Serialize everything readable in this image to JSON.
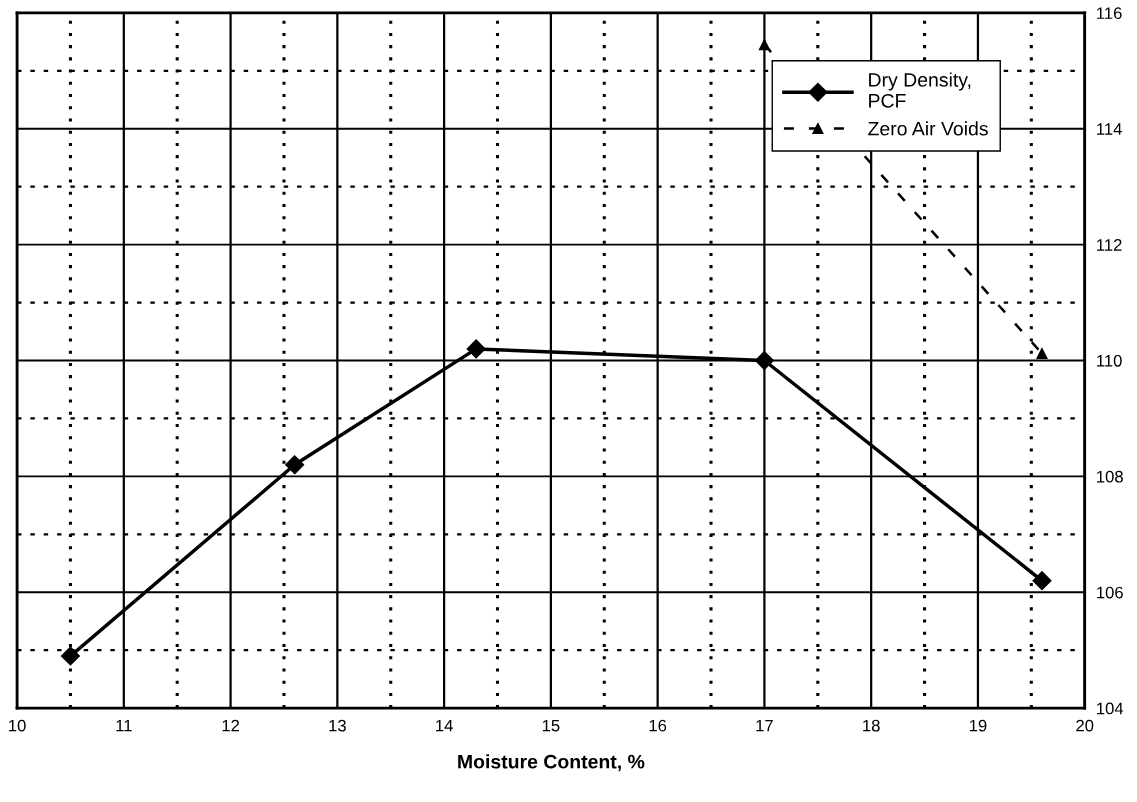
{
  "chart_data": {
    "type": "line",
    "xlabel": "Moisture Content, %",
    "xlim": [
      10,
      20
    ],
    "ylim": [
      104,
      116
    ],
    "xticks": [
      10,
      {
        "value": 10.5,
        "label": null
      },
      11,
      {
        "value": 11.5,
        "label": null
      },
      12,
      {
        "value": 12.5,
        "label": null
      },
      13,
      {
        "value": 13.5,
        "label": null
      },
      14,
      {
        "value": 14.5,
        "label": null
      },
      15,
      {
        "value": 15.5,
        "label": null
      },
      16,
      {
        "value": 16.5,
        "label": null
      },
      17,
      {
        "value": 17.5,
        "label": null
      },
      18,
      {
        "value": 18.5,
        "label": null
      },
      19,
      {
        "value": 19.5,
        "label": null
      },
      20
    ],
    "yticks": [
      104,
      {
        "value": 105,
        "label": null
      },
      106,
      {
        "value": 107,
        "label": null
      },
      108,
      {
        "value": 109,
        "label": null
      },
      110,
      {
        "value": 111,
        "label": null
      },
      112,
      {
        "value": 113,
        "label": null
      },
      114,
      {
        "value": 115,
        "label": null
      },
      116
    ],
    "grid": true,
    "legend": "top right",
    "series": [
      {
        "name": "Dry Density,\nPCF",
        "color": "#000000",
        "marker": "diamond",
        "line_style": "solid",
        "x": [
          10.5,
          12.6,
          14.3,
          17.0,
          19.6
        ],
        "values": [
          104.9,
          108.2,
          110.2,
          110.0,
          106.2
        ]
      },
      {
        "name": "Zero Air Voids",
        "color": "#000000",
        "marker": "triangle",
        "line_style": "dashed",
        "x": [
          17.0,
          19.6
        ],
        "values": [
          115.45,
          110.12
        ]
      }
    ]
  }
}
